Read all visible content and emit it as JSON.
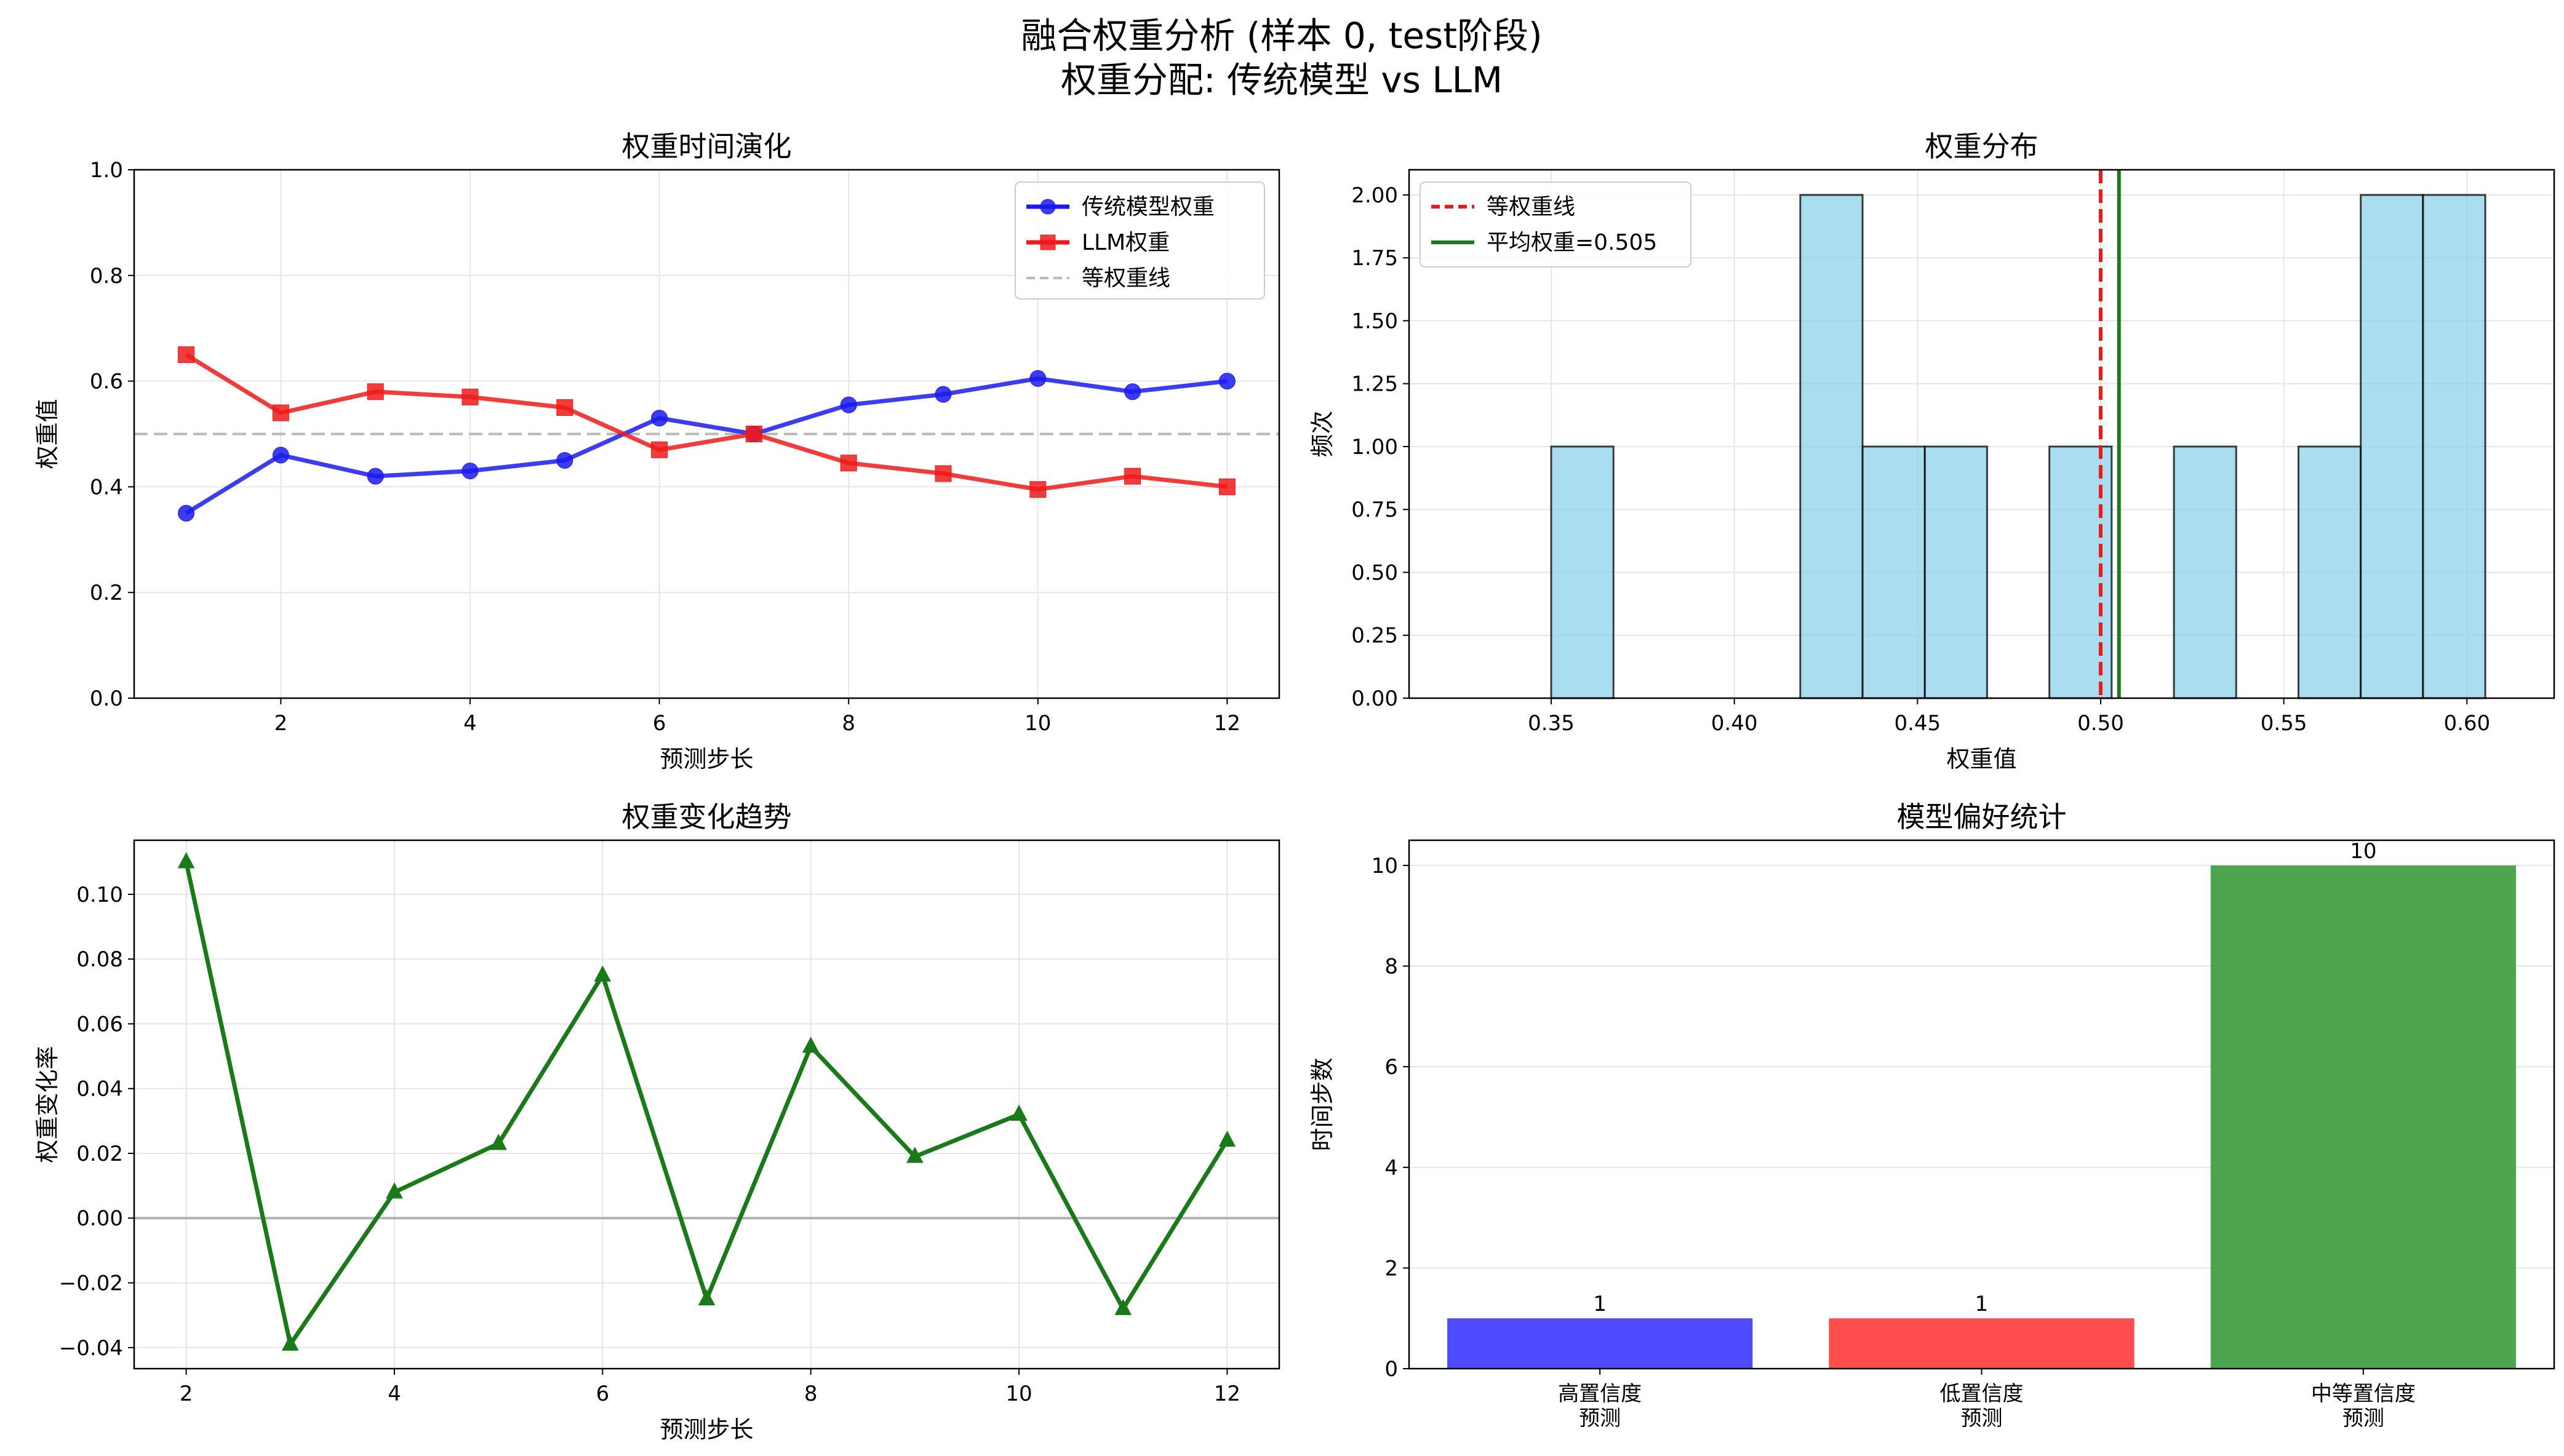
{
  "figure": {
    "suptitle_line1": "融合权重分析 (样本 0, test阶段)",
    "suptitle_line2": "权重分配: 传统模型 vs LLM"
  },
  "chart_data": [
    {
      "id": "weights-over-time",
      "type": "line",
      "title": "权重时间演化",
      "xlabel": "预测步长",
      "ylabel": "权重值",
      "xlim": [
        0.45,
        12.55
      ],
      "ylim": [
        0,
        1.0
      ],
      "xticks": [
        2,
        4,
        6,
        8,
        10,
        12
      ],
      "xtick_labels": [
        "2",
        "4",
        "6",
        "8",
        "10",
        "12"
      ],
      "yticks": [
        0,
        0.2,
        0.4,
        0.6,
        0.8,
        1.0
      ],
      "ytick_labels": [
        "0.0",
        "0.2",
        "0.4",
        "0.6",
        "0.8",
        "1.0"
      ],
      "grid": true,
      "legend_position": "upper right",
      "x": [
        1,
        2,
        3,
        4,
        5,
        6,
        7,
        8,
        9,
        10,
        11,
        12
      ],
      "series": [
        {
          "name": "传统模型权重",
          "color": "#1a1aee",
          "marker": "circle",
          "values": [
            0.35,
            0.46,
            0.42,
            0.43,
            0.45,
            0.53,
            0.5,
            0.555,
            0.575,
            0.605,
            0.58,
            0.6
          ]
        },
        {
          "name": "LLM权重",
          "color": "#ee1a1a",
          "marker": "square",
          "values": [
            0.65,
            0.54,
            0.58,
            0.57,
            0.55,
            0.47,
            0.5,
            0.445,
            0.425,
            0.395,
            0.42,
            0.4
          ]
        }
      ],
      "reference_lines": [
        {
          "name": "等权重线",
          "y": 0.5,
          "color": "#b8b8b8",
          "style": "dashed"
        }
      ]
    },
    {
      "id": "weight-distribution",
      "type": "bar",
      "title": "权重分布",
      "xlabel": "权重值",
      "ylabel": "频次",
      "xlim": [
        0.3112,
        0.6238
      ],
      "ylim": [
        0,
        2.1
      ],
      "xticks": [
        0.35,
        0.4,
        0.45,
        0.5,
        0.55,
        0.6
      ],
      "xtick_labels": [
        "0.35",
        "0.40",
        "0.45",
        "0.50",
        "0.55",
        "0.60"
      ],
      "yticks": [
        0,
        0.25,
        0.5,
        0.75,
        1.0,
        1.25,
        1.5,
        1.75,
        2.0
      ],
      "ytick_labels": [
        "0.00",
        "0.25",
        "0.50",
        "0.75",
        "1.00",
        "1.25",
        "1.50",
        "1.75",
        "2.00"
      ],
      "grid": true,
      "legend_position": "upper left",
      "bar_color": "#87ceeb",
      "bins": [
        0.35,
        0.367,
        0.384,
        0.401,
        0.418,
        0.435,
        0.452,
        0.469,
        0.486,
        0.503,
        0.52,
        0.537,
        0.554,
        0.571,
        0.588,
        0.605
      ],
      "counts": [
        1,
        0,
        0,
        0,
        2,
        1,
        1,
        0,
        1,
        0,
        1,
        0,
        1,
        2,
        2
      ],
      "reference_lines": [
        {
          "name": "等权重线",
          "x": 0.5,
          "color": "#ee1a1a",
          "style": "dashed"
        },
        {
          "name": "平均权重=0.505",
          "x": 0.505,
          "color": "#1a7a1a",
          "style": "solid"
        }
      ]
    },
    {
      "id": "weight-change-trend",
      "type": "line",
      "title": "权重变化趋势",
      "xlabel": "预测步长",
      "ylabel": "权重变化率",
      "xlim": [
        1.5,
        12.5
      ],
      "ylim": [
        -0.0465,
        0.1167
      ],
      "xticks": [
        2,
        4,
        6,
        8,
        10,
        12
      ],
      "xtick_labels": [
        "2",
        "4",
        "6",
        "8",
        "10",
        "12"
      ],
      "yticks": [
        -0.04,
        -0.02,
        0.0,
        0.02,
        0.04,
        0.06,
        0.08,
        0.1
      ],
      "ytick_labels": [
        "−0.04",
        "−0.02",
        "0.00",
        "0.02",
        "0.04",
        "0.06",
        "0.08",
        "0.10"
      ],
      "grid": true,
      "x": [
        2,
        3,
        4,
        5,
        6,
        7,
        8,
        9,
        10,
        11,
        12
      ],
      "series": [
        {
          "color": "#1a7a1a",
          "marker": "triangle",
          "values": [
            0.11,
            -0.039,
            0.008,
            0.023,
            0.075,
            -0.025,
            0.053,
            0.019,
            0.032,
            -0.028,
            0.024
          ]
        }
      ],
      "reference_lines": [
        {
          "y": 0.0,
          "color": "#a0a0a0",
          "style": "solid"
        }
      ]
    },
    {
      "id": "model-preference",
      "type": "bar",
      "title": "模型偏好统计",
      "ylabel": "时间步数",
      "ylim": [
        0,
        10.5
      ],
      "yticks": [
        0,
        2,
        4,
        6,
        8,
        10
      ],
      "ytick_labels": [
        "0",
        "2",
        "4",
        "6",
        "8",
        "10"
      ],
      "grid": true,
      "categories": [
        [
          "高置信度",
          "预测"
        ],
        [
          "低置信度",
          "预测"
        ],
        [
          "中等置信度",
          "预测"
        ]
      ],
      "values": [
        1,
        1,
        10
      ],
      "value_labels": [
        "1",
        "1",
        "10"
      ],
      "colors": [
        "#4d4dff",
        "#ff4d4d",
        "#4da64d"
      ]
    }
  ]
}
